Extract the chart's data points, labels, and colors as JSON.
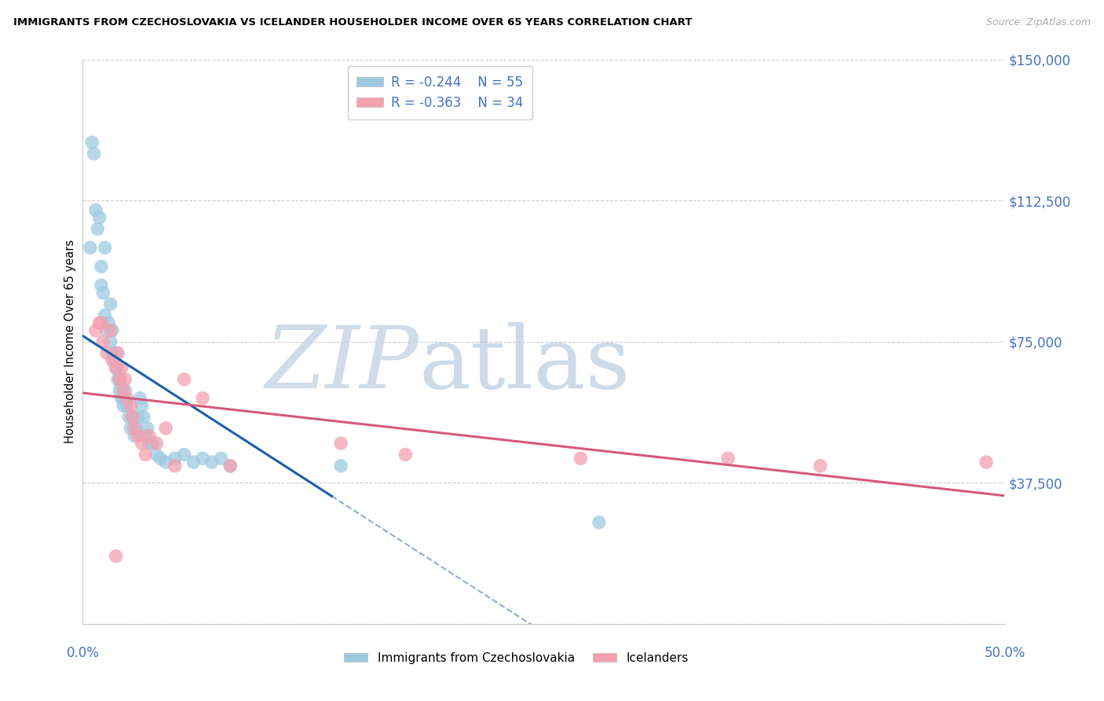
{
  "title": "IMMIGRANTS FROM CZECHOSLOVAKIA VS ICELANDER HOUSEHOLDER INCOME OVER 65 YEARS CORRELATION CHART",
  "source": "Source: ZipAtlas.com",
  "ylabel": "Householder Income Over 65 years",
  "xlim": [
    0.0,
    0.5
  ],
  "ylim": [
    0,
    150000
  ],
  "legend_label1": "Immigrants from Czechoslovakia",
  "legend_label2": "Icelanders",
  "R1": -0.244,
  "N1": 55,
  "R2": -0.363,
  "N2": 34,
  "color_blue": "#9ecae1",
  "color_pink": "#f4a0b0",
  "color_blue_line": "#1a5fa8",
  "color_pink_line": "#d45a7a",
  "ytick_vals": [
    0,
    37500,
    75000,
    112500,
    150000
  ],
  "ytick_labels": [
    "",
    "$37,500",
    "$75,000",
    "$112,500",
    "$150,000"
  ],
  "blue_x": [
    0.004,
    0.005,
    0.006,
    0.007,
    0.008,
    0.009,
    0.01,
    0.01,
    0.011,
    0.012,
    0.012,
    0.013,
    0.014,
    0.015,
    0.015,
    0.016,
    0.016,
    0.017,
    0.018,
    0.018,
    0.019,
    0.019,
    0.02,
    0.02,
    0.021,
    0.021,
    0.022,
    0.022,
    0.023,
    0.024,
    0.025,
    0.026,
    0.027,
    0.028,
    0.029,
    0.03,
    0.031,
    0.032,
    0.033,
    0.034,
    0.035,
    0.036,
    0.038,
    0.04,
    0.042,
    0.045,
    0.05,
    0.055,
    0.06,
    0.065,
    0.07,
    0.075,
    0.08,
    0.14,
    0.28
  ],
  "blue_y": [
    100000,
    128000,
    125000,
    110000,
    105000,
    108000,
    95000,
    90000,
    88000,
    100000,
    82000,
    78000,
    80000,
    85000,
    75000,
    78000,
    72000,
    70000,
    68000,
    72000,
    65000,
    68000,
    65000,
    62000,
    60000,
    63000,
    58000,
    60000,
    62000,
    58000,
    55000,
    52000,
    55000,
    50000,
    52000,
    55000,
    60000,
    58000,
    55000,
    50000,
    52000,
    48000,
    48000,
    45000,
    44000,
    43000,
    44000,
    45000,
    43000,
    44000,
    43000,
    44000,
    42000,
    42000,
    27000
  ],
  "pink_x": [
    0.007,
    0.009,
    0.011,
    0.013,
    0.015,
    0.016,
    0.018,
    0.019,
    0.02,
    0.021,
    0.022,
    0.023,
    0.024,
    0.026,
    0.027,
    0.028,
    0.03,
    0.032,
    0.034,
    0.036,
    0.04,
    0.045,
    0.05,
    0.055,
    0.065,
    0.08,
    0.14,
    0.175,
    0.27,
    0.35,
    0.4,
    0.49,
    0.01,
    0.018
  ],
  "pink_y": [
    78000,
    80000,
    75000,
    72000,
    78000,
    70000,
    68000,
    72000,
    65000,
    68000,
    62000,
    65000,
    60000,
    58000,
    55000,
    52000,
    50000,
    48000,
    45000,
    50000,
    48000,
    52000,
    42000,
    65000,
    60000,
    42000,
    48000,
    45000,
    44000,
    44000,
    42000,
    43000,
    80000,
    18000
  ],
  "blue_line_x_start": 0.0,
  "blue_line_x_solid_end": 0.135,
  "pink_line_x_start": 0.0,
  "pink_line_x_end": 0.5
}
